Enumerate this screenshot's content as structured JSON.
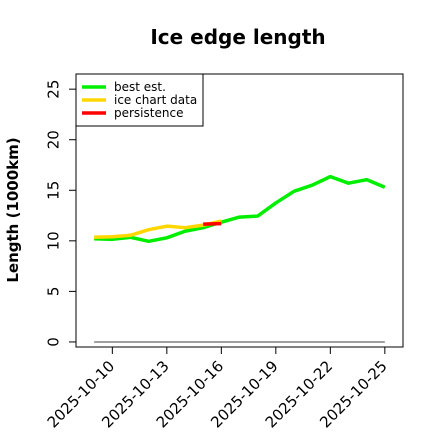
{
  "chart_data": {
    "type": "line",
    "title": "Ice edge length",
    "xlabel": "",
    "ylabel": "Length (1000km)",
    "xlim": [
      "2025-10-08",
      "2025-10-26"
    ],
    "ylim": [
      -0.5,
      26.5
    ],
    "x_ticks": [
      "2025-10-10",
      "2025-10-13",
      "2025-10-16",
      "2025-10-19",
      "2025-10-22",
      "2025-10-25"
    ],
    "y_ticks": [
      0,
      5,
      10,
      15,
      20,
      25
    ],
    "grid": false,
    "legend_position": "top-left",
    "series": [
      {
        "name": "best est.",
        "color": "#00ee00",
        "x": [
          "2025-10-09",
          "2025-10-10",
          "2025-10-11",
          "2025-10-12",
          "2025-10-13",
          "2025-10-14",
          "2025-10-15",
          "2025-10-16",
          "2025-10-17",
          "2025-10-18",
          "2025-10-19",
          "2025-10-20",
          "2025-10-21",
          "2025-10-22",
          "2025-10-23",
          "2025-10-24",
          "2025-10-25"
        ],
        "y": [
          10.2,
          10.15,
          10.35,
          9.95,
          10.3,
          10.95,
          11.3,
          11.85,
          12.35,
          12.45,
          13.75,
          14.9,
          15.5,
          16.35,
          15.7,
          16.05,
          15.3
        ]
      },
      {
        "name": "ice chart data",
        "color": "#ffd700",
        "x": [
          "2025-10-09",
          "2025-10-10",
          "2025-10-11",
          "2025-10-12",
          "2025-10-13",
          "2025-10-14",
          "2025-10-15",
          "2025-10-16"
        ],
        "y": [
          10.35,
          10.4,
          10.55,
          11.1,
          11.45,
          11.3,
          11.55,
          11.95
        ]
      },
      {
        "name": "persistence",
        "color": "#ff0000",
        "x": [
          "2025-10-15",
          "2025-10-16"
        ],
        "y": [
          11.65,
          11.7
        ]
      }
    ],
    "reference_line": {
      "color": "#808080",
      "x": [
        "2025-10-09",
        "2025-10-25"
      ],
      "y": [
        0,
        0
      ]
    }
  }
}
